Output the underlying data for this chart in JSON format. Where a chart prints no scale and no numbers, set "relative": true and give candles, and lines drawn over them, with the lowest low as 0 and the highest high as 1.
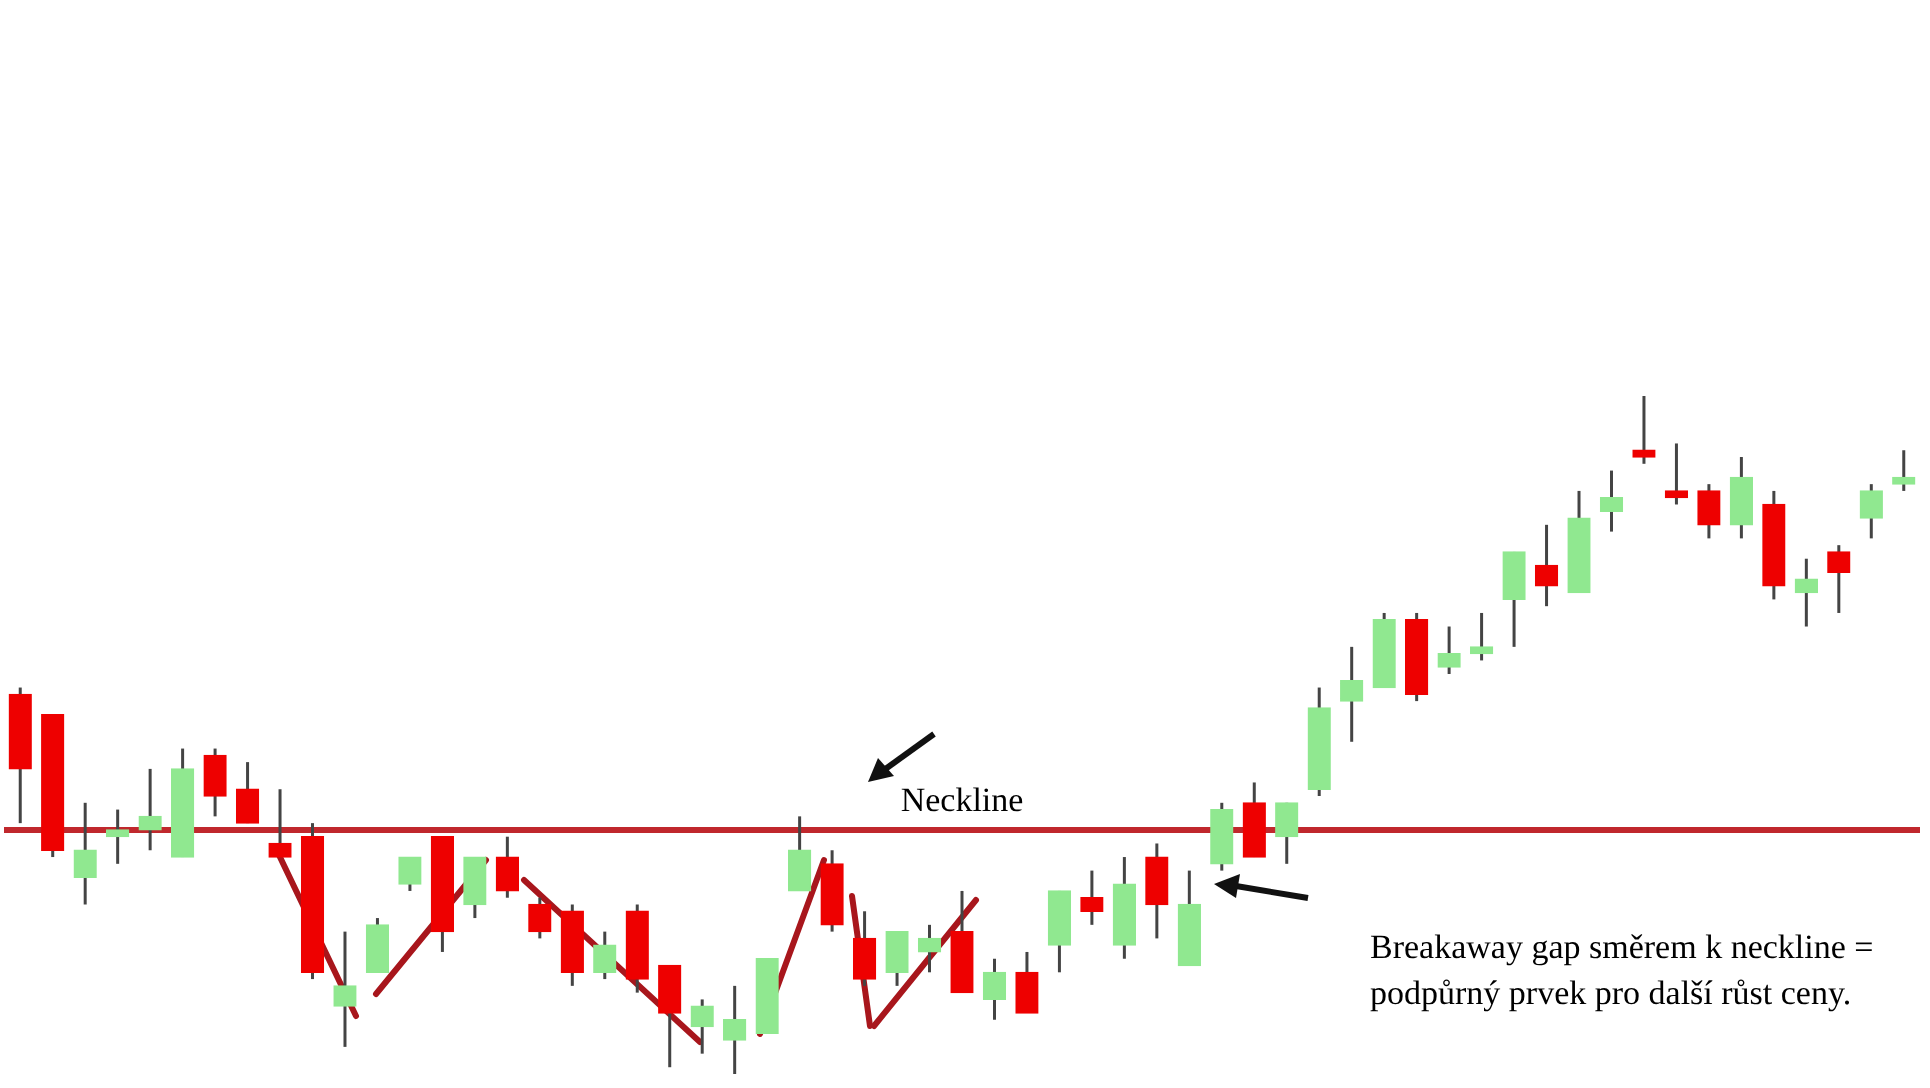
{
  "chart_data": {
    "type": "candlestick",
    "relative": true,
    "tick_labels": false,
    "legend": false,
    "categories": [
      null,
      null,
      null,
      null,
      null,
      null,
      null,
      null,
      null,
      null,
      null,
      null,
      null,
      null,
      null,
      null,
      null,
      null,
      null,
      null,
      null,
      null,
      null,
      null,
      null,
      null,
      null,
      null,
      null,
      null,
      null,
      null,
      null,
      null,
      null,
      null,
      null,
      null,
      null,
      null,
      null,
      null,
      null,
      null,
      null,
      null,
      null,
      null,
      null,
      null,
      null,
      null,
      null,
      null,
      null,
      null,
      null,
      null,
      null
    ],
    "ohlc": [
      [
        0.56,
        0.57,
        0.37,
        0.45
      ],
      [
        0.53,
        0.53,
        0.32,
        0.33
      ],
      [
        0.29,
        0.4,
        0.25,
        0.33
      ],
      [
        0.35,
        0.39,
        0.31,
        0.36
      ],
      [
        0.36,
        0.45,
        0.33,
        0.38
      ],
      [
        0.32,
        0.48,
        0.32,
        0.45
      ],
      [
        0.47,
        0.48,
        0.38,
        0.41
      ],
      [
        0.42,
        0.46,
        0.37,
        0.37
      ],
      [
        0.34,
        0.42,
        0.32,
        0.32
      ],
      [
        0.35,
        0.37,
        0.14,
        0.15
      ],
      [
        0.1,
        0.21,
        0.04,
        0.13
      ],
      [
        0.15,
        0.23,
        0.15,
        0.22
      ],
      [
        0.28,
        0.32,
        0.27,
        0.32
      ],
      [
        0.35,
        0.35,
        0.18,
        0.21
      ],
      [
        0.25,
        0.32,
        0.23,
        0.32
      ],
      [
        0.32,
        0.35,
        0.26,
        0.27
      ],
      [
        0.25,
        0.26,
        0.2,
        0.21
      ],
      [
        0.24,
        0.25,
        0.13,
        0.15
      ],
      [
        0.15,
        0.21,
        0.14,
        0.19
      ],
      [
        0.24,
        0.25,
        0.12,
        0.14
      ],
      [
        0.16,
        0.16,
        0.01,
        0.09
      ],
      [
        0.07,
        0.11,
        0.03,
        0.1
      ],
      [
        0.05,
        0.13,
        0,
        0.08
      ],
      [
        0.06,
        0.17,
        0.06,
        0.17
      ],
      [
        0.27,
        0.38,
        0.27,
        0.33
      ],
      [
        0.31,
        0.33,
        0.21,
        0.22
      ],
      [
        0.2,
        0.24,
        0.13,
        0.14
      ],
      [
        0.15,
        0.21,
        0.13,
        0.21
      ],
      [
        0.18,
        0.22,
        0.15,
        0.2
      ],
      [
        0.21,
        0.27,
        0.12,
        0.12
      ],
      [
        0.11,
        0.17,
        0.08,
        0.15
      ],
      [
        0.15,
        0.18,
        0.09,
        0.09
      ],
      [
        0.19,
        0.27,
        0.15,
        0.27
      ],
      [
        0.26,
        0.3,
        0.22,
        0.24
      ],
      [
        0.19,
        0.32,
        0.17,
        0.28
      ],
      [
        0.32,
        0.34,
        0.2,
        0.25
      ],
      [
        0.16,
        0.3,
        0.16,
        0.25
      ],
      [
        0.31,
        0.4,
        0.3,
        0.39
      ],
      [
        0.4,
        0.43,
        0.32,
        0.32
      ],
      [
        0.35,
        0.4,
        0.31,
        0.4
      ],
      [
        0.42,
        0.57,
        0.41,
        0.54
      ],
      [
        0.55,
        0.63,
        0.49,
        0.58
      ],
      [
        0.57,
        0.68,
        0.57,
        0.67
      ],
      [
        0.67,
        0.68,
        0.55,
        0.56
      ],
      [
        0.6,
        0.66,
        0.59,
        0.62
      ],
      [
        0.62,
        0.68,
        0.61,
        0.63
      ],
      [
        0.7,
        0.77,
        0.63,
        0.77
      ],
      [
        0.75,
        0.81,
        0.69,
        0.72
      ],
      [
        0.71,
        0.86,
        0.71,
        0.82
      ],
      [
        0.83,
        0.89,
        0.8,
        0.85
      ],
      [
        0.92,
        1,
        0.9,
        0.91
      ],
      [
        0.86,
        0.93,
        0.84,
        0.85
      ],
      [
        0.86,
        0.87,
        0.79,
        0.81
      ],
      [
        0.81,
        0.91,
        0.79,
        0.88
      ],
      [
        0.84,
        0.86,
        0.7,
        0.72
      ],
      [
        0.71,
        0.76,
        0.66,
        0.73
      ],
      [
        0.77,
        0.78,
        0.68,
        0.74
      ],
      [
        0.82,
        0.87,
        0.79,
        0.86
      ],
      [
        0.87,
        0.92,
        0.86,
        0.88
      ]
    ],
    "colors": [
      "#ee0000",
      "#ee0000",
      "#90e890",
      "#90e890",
      "#90e890",
      "#90e890",
      "#ee0000",
      "#ee0000",
      "#ee0000",
      "#ee0000",
      "#90e890",
      "#90e890",
      "#90e890",
      "#ee0000",
      "#90e890",
      "#ee0000",
      "#ee0000",
      "#ee0000",
      "#90e890",
      "#ee0000",
      "#ee0000",
      "#90e890",
      "#90e890",
      "#90e890",
      "#90e890",
      "#ee0000",
      "#ee0000",
      "#90e890",
      "#90e890",
      "#ee0000",
      "#90e890",
      "#ee0000",
      "#90e890",
      "#ee0000",
      "#90e890",
      "#ee0000",
      "#90e890",
      "#90e890",
      "#ee0000",
      "#90e890",
      "#90e890",
      "#90e890",
      "#90e890",
      "#ee0000",
      "#90e890",
      "#90e890",
      "#90e890",
      "#ee0000",
      "#90e890",
      "#90e890",
      "#ee0000",
      "#ee0000",
      "#ee0000",
      "#90e890",
      "#ee0000",
      "#90e890",
      "#ee0000",
      "#90e890",
      "#90e890"
    ],
    "ref_lines": [
      {
        "axis": "y",
        "value": 0.36,
        "label": "Neckline",
        "color": "#c0282d"
      }
    ],
    "annotations": [
      "Breakaway gap směrem k neckline = podpůrný prvek pro další růst ceny."
    ]
  }
}
